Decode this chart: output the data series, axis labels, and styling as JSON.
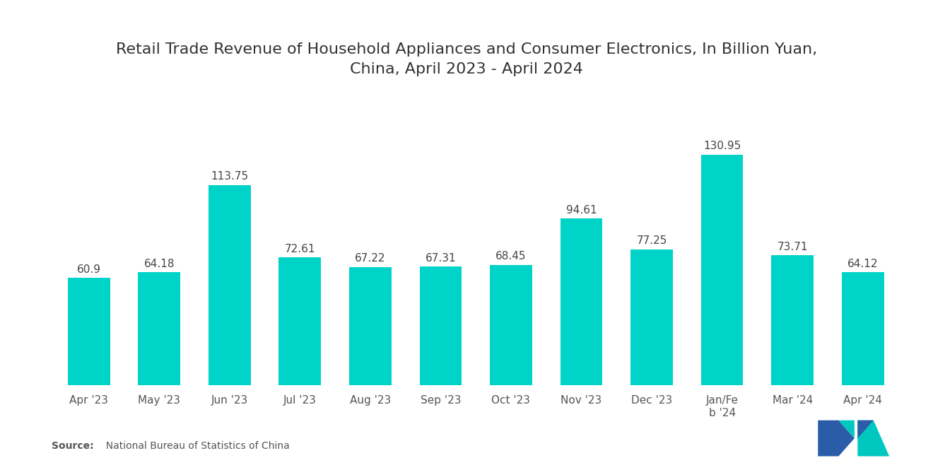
{
  "title": "Retail Trade Revenue of Household Appliances and Consumer Electronics, In Billion Yuan,\nChina, April 2023 - April 2024",
  "categories": [
    "Apr '23",
    "May '23",
    "Jun '23",
    "Jul '23",
    "Aug '23",
    "Sep '23",
    "Oct '23",
    "Nov '23",
    "Dec '23",
    "Jan/Fe\nb '24",
    "Mar '24",
    "Apr '24"
  ],
  "values": [
    60.9,
    64.18,
    113.75,
    72.61,
    67.22,
    67.31,
    68.45,
    94.61,
    77.25,
    130.95,
    73.71,
    64.12
  ],
  "bar_color": "#00D4C8",
  "background_color": "#ffffff",
  "title_fontsize": 16,
  "label_fontsize": 11,
  "value_fontsize": 11,
  "source_bold": "Source:",
  "source_rest": "  National Bureau of Statistics of China",
  "ylim": [
    0,
    160
  ],
  "logo_blue": "#2B5CA8",
  "logo_teal": "#00C8C0"
}
